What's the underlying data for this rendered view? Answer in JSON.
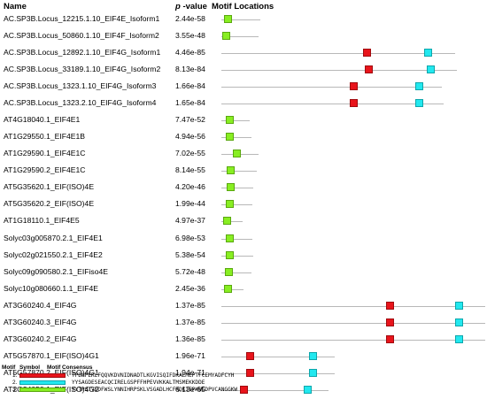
{
  "headers": {
    "name": "Name",
    "p_italic": "p",
    "p_rest": " -value",
    "motif_locations": "Motif Locations"
  },
  "colors": {
    "motif1": "#e8141b",
    "motif2": "#22e8ef",
    "motif3": "#88ee22",
    "track": "#b8b8b8"
  },
  "rows": [
    {
      "name": "AC.SP3B.Locus_12215.1.10_EIF4E_Isoform1",
      "pvalue": "2.44e-58"
    },
    {
      "name": "AC.SP3B.Locus_50860.1.10_EIF4F_Isoform2",
      "pvalue": "3.55e-48"
    },
    {
      "name": "AC.SP3B.Locus_12892.1.10_EIF4G_Isoform1",
      "pvalue": "4.46e-85"
    },
    {
      "name": "AC.SP3B.Locus_33189.1.10_EIF4G_Isoform2",
      "pvalue": "8.13e-84"
    },
    {
      "name": "AC.SP3B.Locus_1323.1.10_EIF4G_Isoform3",
      "pvalue": "1.66e-84"
    },
    {
      "name": "AC.SP3B.Locus_1323.2.10_EIF4G_Isoform4",
      "pvalue": "1.65e-84"
    },
    {
      "name": "AT4G18040.1_EIF4E1",
      "pvalue": "7.47e-52"
    },
    {
      "name": "AT1G29550.1_EIF4E1B",
      "pvalue": "4.94e-56"
    },
    {
      "name": "AT1G29590.1_EIF4E1C",
      "pvalue": "7.02e-55"
    },
    {
      "name": "AT1G29590.2_EIF4E1C",
      "pvalue": "8.14e-55"
    },
    {
      "name": "AT5G35620.1_EIF(ISO)4E",
      "pvalue": "4.20e-46"
    },
    {
      "name": "AT5G35620.2_EIF(ISO)4E",
      "pvalue": "1.99e-44"
    },
    {
      "name": "AT1G18110.1_EIF4E5",
      "pvalue": "4.97e-37"
    },
    {
      "name": "Solyc03g005870.2.1_EIF4E1",
      "pvalue": "6.98e-53"
    },
    {
      "name": "Solyc02g021550.2.1_EIF4E2",
      "pvalue": "5.38e-54"
    },
    {
      "name": "Solyc09g090580.2.1_EIFiso4E",
      "pvalue": "5.72e-48"
    },
    {
      "name": "Solyc10g080660.1.1_EIF4E",
      "pvalue": "2.45e-36"
    },
    {
      "name": "AT3G60240.4_EIF4G",
      "pvalue": "1.37e-85"
    },
    {
      "name": "AT3G60240.3_EIF4G",
      "pvalue": "1.37e-85"
    },
    {
      "name": "AT3G60240.2_EIF4G",
      "pvalue": "1.36e-85"
    },
    {
      "name": "AT5G57870.1_EIF(ISO)4G1",
      "pvalue": "1.96e-71"
    },
    {
      "name": "AT5G57870.2_EIF(ISO)4G1",
      "pvalue": "1.94e-71"
    },
    {
      "name": "AT2G24050.1_EIF(ISO)4G2",
      "pvalue": "6.13e-65"
    }
  ],
  "legend": {
    "col_motif": "Motif",
    "col_symbol": "Symbol",
    "col_consensus": "Motif Consensus",
    "entries": [
      {
        "num": "1.",
        "consensus": "TPDNFEKLFQQVKDVNIDNADTLKGVISQIFDKALMEPTFCEMYADFCYH"
      },
      {
        "num": "2.",
        "consensus": "YYSAGDESEACQCIRELGSPFFHPEVVKKALTMSMEKKDDE"
      },
      {
        "num": "3.",
        "consensus": "YYTPSTVEDFWSLYNNIHRPSKLVSGADLHCFKDKIEPKWEDPVCANGGKW"
      }
    ]
  }
}
